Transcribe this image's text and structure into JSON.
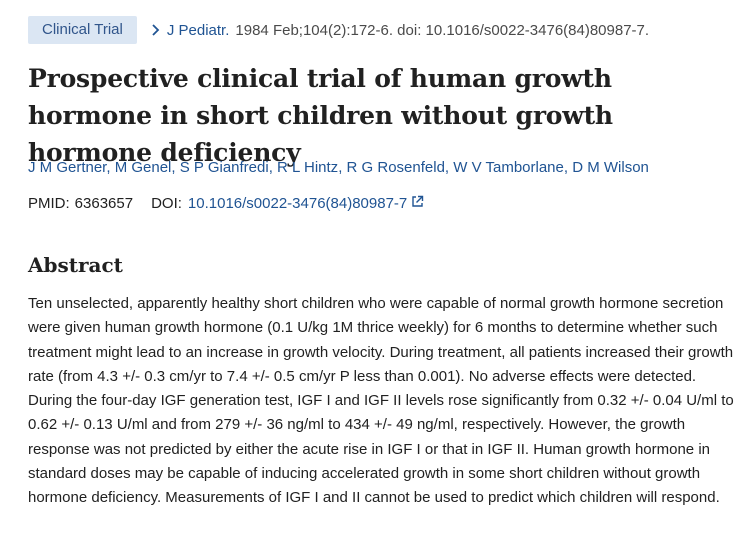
{
  "header": {
    "badge": "Clinical Trial",
    "journal": "J Pediatr.",
    "citation": "1984 Feb;104(2):172-6. doi: 10.1016/s0022-3476(84)80987-7."
  },
  "article": {
    "title": "Prospective clinical trial of human growth hormone in short children without growth hormone deficiency",
    "authors": [
      "J M Gertner",
      "M Genel",
      "S P Gianfredi",
      "R L Hintz",
      "R G Rosenfeld",
      "W V Tamborlane",
      "D M Wilson"
    ],
    "pmid_label": "PMID:",
    "pmid": "6363657",
    "doi_label": "DOI:",
    "doi": "10.1016/s0022-3476(84)80987-7"
  },
  "abstract": {
    "heading": "Abstract",
    "text": "Ten unselected, apparently healthy short children who were capable of normal growth hormone secretion were given human growth hormone (0.1 U/kg 1M thrice weekly) for 6 months to determine whether such treatment might lead to an increase in growth velocity. During treatment, all patients increased their growth rate (from 4.3 +/- 0.3 cm/yr to 7.4 +/- 0.5 cm/yr P less than 0.001). No adverse effects were detected. During the four-day IGF generation test, IGF I and IGF II levels rose significantly from 0.32 +/- 0.04 U/ml to 0.62 +/- 0.13 U/ml and from 279 +/- 36 ng/ml to 434 +/- 49 ng/ml, respectively. However, the growth response was not predicted by either the acute rise in IGF I or that in IGF II. Human growth hormone in standard doses may be capable of inducing accelerated growth in some short children without growth hormone deficiency. Measurements of IGF I and II cannot be used to predict which children will respond."
  },
  "icons": {
    "journal_chevron": "chevron-right-icon",
    "doi_external": "external-link-icon"
  },
  "colors": {
    "link": "#205493",
    "badge_bg": "#dbe6f3",
    "badge_text": "#30558b",
    "text": "#212121"
  }
}
